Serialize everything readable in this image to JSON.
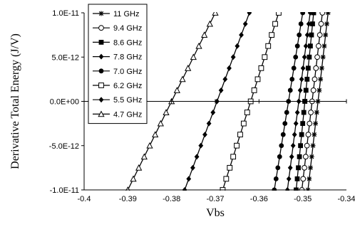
{
  "chart_data": {
    "type": "line",
    "title": "",
    "xlabel": "Vbs",
    "ylabel": "Derivative Total Energy (J/V)",
    "xlim": [
      -0.4,
      -0.34
    ],
    "ylim": [
      -1e-11,
      1e-11
    ],
    "x_ticks": [
      -0.4,
      -0.39,
      -0.38,
      -0.37,
      -0.36,
      -0.35,
      -0.34
    ],
    "x_tick_labels": [
      "-0.4",
      "-0.39",
      "-0.38",
      "-0.37",
      "-0.36",
      "-0.35",
      "-0.34"
    ],
    "y_ticks": [
      1e-11,
      5e-12,
      0,
      -5e-12,
      -1e-11
    ],
    "y_tick_labels": [
      "1.0E-11",
      "5.0E-12",
      "0.0E+00",
      "-5.0E-12",
      "-1.0E-11"
    ],
    "grid": false,
    "zero_line": true,
    "legend_position": "top-left",
    "series": [
      {
        "name": "11 GHz",
        "marker": "asterisk",
        "x_at_ymin": -0.3488,
        "x_at_ymax": -0.3442
      },
      {
        "name": "9.4 GHz",
        "marker": "circle-open",
        "x_at_ymin": -0.3502,
        "x_at_ymax": -0.3455
      },
      {
        "name": "8.6 GHz",
        "marker": "square-filled",
        "x_at_ymin": -0.3515,
        "x_at_ymax": -0.3475
      },
      {
        "name": "7.8 GHz",
        "marker": "diamond-filled",
        "x_at_ymin": -0.3535,
        "x_at_ymax": -0.3483
      },
      {
        "name": "7.0 GHz",
        "marker": "circle-filled",
        "x_at_ymin": -0.3565,
        "x_at_ymax": -0.35
      },
      {
        "name": "6.2 GHz",
        "marker": "square-open",
        "x_at_ymin": -0.3683,
        "x_at_ymax": -0.3555
      },
      {
        "name": "5.5 GHz",
        "marker": "diamond-filled",
        "x_at_ymin": -0.377,
        "x_at_ymax": -0.3622
      },
      {
        "name": "4.7 GHz",
        "marker": "triangle-open",
        "x_at_ymin": -0.39,
        "x_at_ymax": -0.37
      }
    ]
  }
}
